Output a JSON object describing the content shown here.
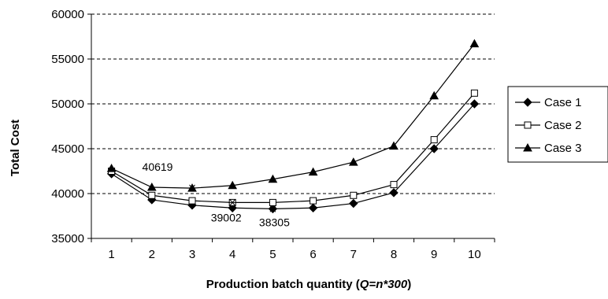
{
  "chart_data": {
    "type": "line",
    "title": "",
    "xlabel_prefix": "Production batch quantity (",
    "xlabel_math": "Q=n*300",
    "xlabel_suffix": ")",
    "ylabel": "Total Cost",
    "categories": [
      "1",
      "2",
      "3",
      "4",
      "5",
      "6",
      "7",
      "8",
      "9",
      "10"
    ],
    "ylim": [
      35000,
      60000
    ],
    "yticks": [
      "35000",
      "40000",
      "45000",
      "50000",
      "55000",
      "60000"
    ],
    "grid": "horizontal-dashed",
    "legend_position": "right",
    "series": [
      {
        "name": "Case 1",
        "marker": "diamond-filled",
        "values": [
          42200,
          39300,
          38700,
          38400,
          38300,
          38400,
          38900,
          40100,
          45000,
          50000
        ]
      },
      {
        "name": "Case 2",
        "marker": "square-open",
        "values": [
          42500,
          39800,
          39200,
          39000,
          39000,
          39200,
          39800,
          41000,
          46000,
          51200
        ]
      },
      {
        "name": "Case 3",
        "marker": "triangle-filled",
        "values": [
          42800,
          40700,
          40600,
          40900,
          41600,
          42400,
          43500,
          45300,
          50900,
          56700
        ]
      }
    ],
    "annotations": [
      {
        "text": "40619",
        "x": 3,
        "y": 40619,
        "marker": "asterisk"
      },
      {
        "text": "39002",
        "x": 4,
        "y": 39002,
        "marker": "asterisk"
      },
      {
        "text": "38305",
        "x": 5,
        "y": 38305,
        "marker": "asterisk"
      }
    ]
  }
}
